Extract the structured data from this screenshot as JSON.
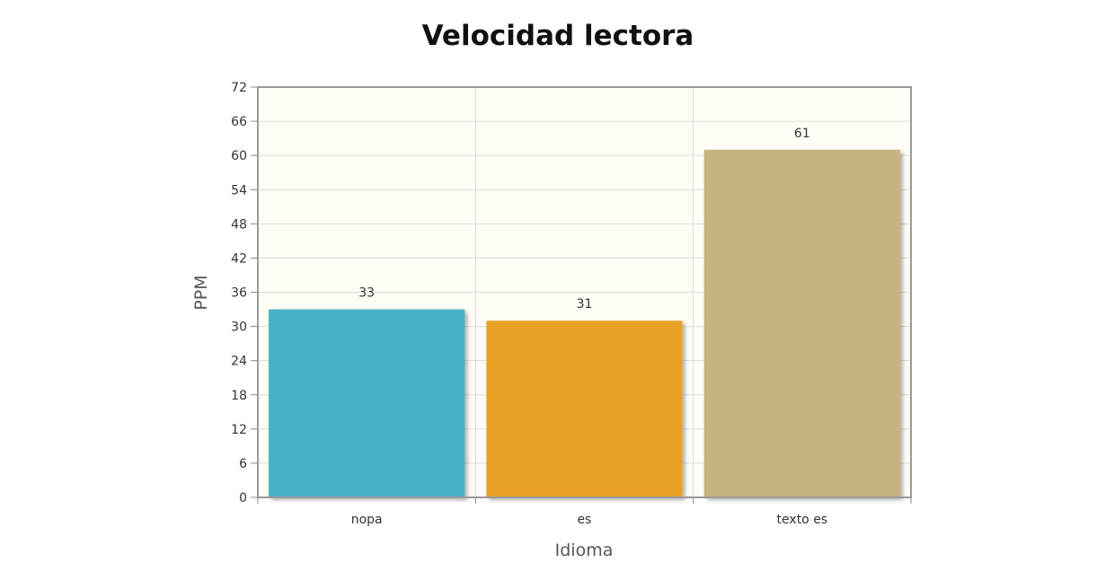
{
  "chart_data": {
    "type": "bar",
    "title": "Velocidad lectora",
    "xlabel": "Idioma",
    "ylabel": "PPM",
    "categories": [
      "nopa",
      "es",
      "texto es"
    ],
    "values": [
      33,
      31,
      61
    ],
    "data_labels": [
      "33",
      "31",
      "61"
    ],
    "bar_colors": [
      "#4bb2c5",
      "#eaa228",
      "#c5b47f"
    ],
    "ylim": [
      0,
      72
    ],
    "yticks": [
      0,
      6,
      12,
      18,
      24,
      30,
      36,
      42,
      48,
      54,
      60,
      66,
      72
    ],
    "plot_background": "#fffdf6",
    "grid": true,
    "legend": "none"
  }
}
